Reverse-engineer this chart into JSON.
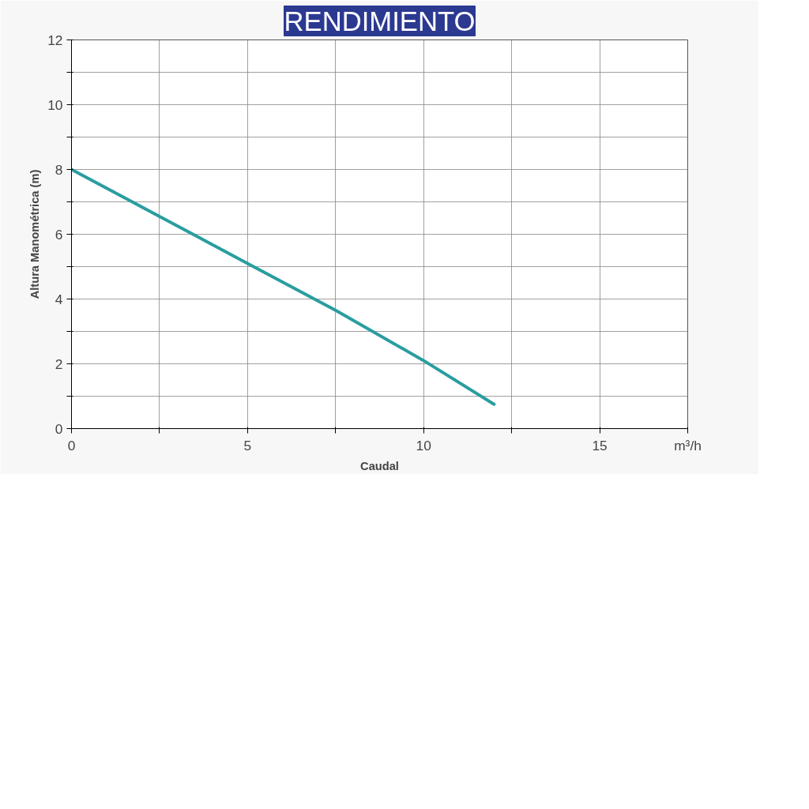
{
  "chart_data": {
    "type": "line",
    "title": "RENDIMIENTO",
    "xlabel": "Caudal",
    "ylabel": "Altura Manométrica (m)",
    "x": [
      0,
      2.5,
      5,
      7.5,
      10,
      12
    ],
    "series": [
      {
        "color": "#2a9d9f",
        "values": [
          8,
          6.55,
          5.1,
          3.65,
          2.1,
          0.75
        ]
      }
    ],
    "xlim": [
      0,
      17.5
    ],
    "ylim": [
      0,
      12
    ],
    "xticks": [
      0,
      {
        "value": 2.5,
        "label": null
      },
      5,
      {
        "value": 7.5,
        "label": null
      },
      10,
      {
        "value": 12.5,
        "label": null
      },
      15,
      {
        "value": 17.5,
        "label": "m³/h"
      }
    ],
    "yticks": [
      0,
      {
        "value": 1,
        "label": null
      },
      2,
      {
        "value": 3,
        "label": null
      },
      4,
      {
        "value": 5,
        "label": null
      },
      6,
      {
        "value": 7,
        "label": null
      },
      8,
      {
        "value": 9,
        "label": null
      },
      10,
      {
        "value": 11,
        "label": null
      },
      12
    ],
    "grid": true,
    "line_style": "solid",
    "marker": "none"
  }
}
